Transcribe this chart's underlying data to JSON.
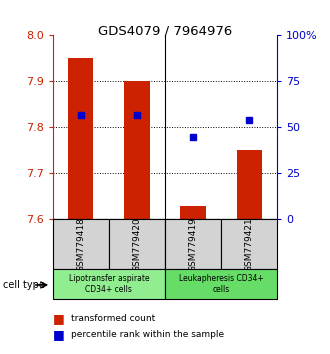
{
  "title": "GDS4079 / 7964976",
  "samples": [
    "GSM779418",
    "GSM779420",
    "GSM779419",
    "GSM779421"
  ],
  "red_values": [
    7.95,
    7.9,
    7.63,
    7.75
  ],
  "blue_percentiles": [
    57,
    57,
    45,
    54
  ],
  "ymin": 7.6,
  "ymax": 8.0,
  "yticks": [
    7.6,
    7.7,
    7.8,
    7.9,
    8.0
  ],
  "right_yticks": [
    0,
    25,
    50,
    75,
    100
  ],
  "right_ytick_labels": [
    "0",
    "25",
    "50",
    "75",
    "100%"
  ],
  "bar_color": "#cc2200",
  "dot_color": "#0000cc",
  "bar_width": 0.45,
  "cell_types": [
    {
      "label": "Lipotransfer aspirate\nCD34+ cells",
      "samples": [
        0,
        1
      ],
      "color": "#90ee90"
    },
    {
      "label": "Leukapheresis CD34+\ncells",
      "samples": [
        2,
        3
      ],
      "color": "#66dd66"
    }
  ],
  "cell_type_label": "cell type",
  "legend_red": "transformed count",
  "legend_blue": "percentile rank within the sample",
  "tick_color_left": "#cc2200",
  "tick_color_right": "#0000cc",
  "bg_color": "#ffffff",
  "plot_bg": "#ffffff",
  "sample_bg": "#d3d3d3",
  "group_separator_at": 1.5
}
